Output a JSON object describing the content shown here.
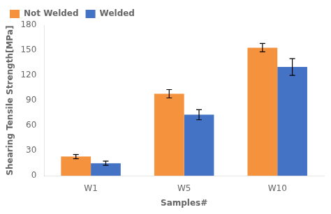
{
  "chart_data": {
    "type": "bar",
    "categories": [
      "W1",
      "W5",
      "W10"
    ],
    "series": [
      {
        "name": "Not Welded",
        "color": "#F5923E",
        "values": [
          23,
          98,
          153
        ],
        "errors": [
          2.5,
          5,
          5
        ]
      },
      {
        "name": "Welded",
        "color": "#4472C4",
        "values": [
          15,
          73,
          130
        ],
        "errors": [
          2.5,
          6,
          10
        ]
      }
    ],
    "xlabel": "Samples#",
    "ylabel": "Shearing Tensile Strength[MPa]",
    "ylim": [
      0,
      180
    ],
    "yticks": [
      0,
      30,
      60,
      90,
      120,
      150,
      180
    ],
    "grid": false,
    "legend": "upper left"
  }
}
